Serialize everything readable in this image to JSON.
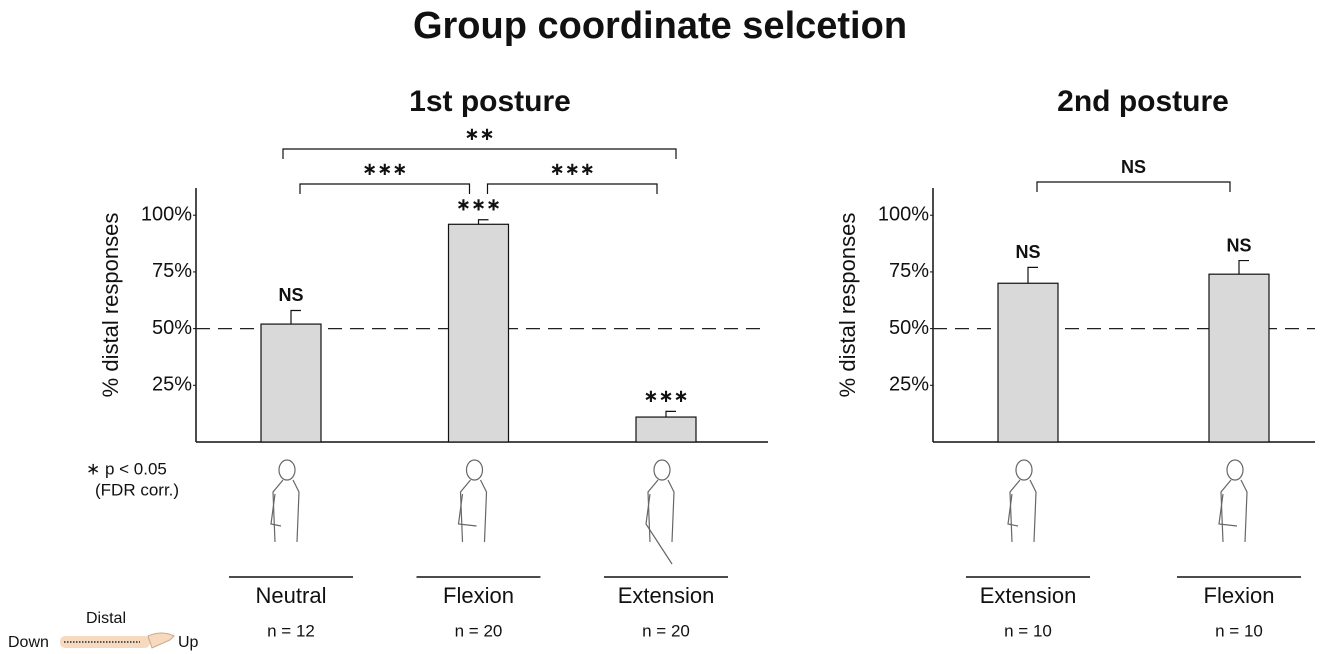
{
  "title": "Group coordinate selcetion",
  "footnote": [
    "∗ p < 0.05",
    "(FDR corr.)"
  ],
  "arm_legend": {
    "label": "Distal",
    "left": "Down",
    "right": "Up"
  },
  "chart_data": [
    {
      "type": "bar",
      "title": "1st posture",
      "ylabel": "% distal responses",
      "categories": [
        "Neutral",
        "Flexion",
        "Extension"
      ],
      "n_labels": [
        "n = 12",
        "n = 20",
        "n = 20"
      ],
      "values": [
        52,
        96,
        11
      ],
      "errors": [
        6,
        2,
        2.5
      ],
      "significance": [
        "NS",
        "∗∗∗",
        "∗∗∗"
      ],
      "brackets": [
        {
          "from": 0,
          "to": 2,
          "label": "∗∗"
        },
        {
          "from": 0,
          "to": 1,
          "label": "∗∗∗"
        },
        {
          "from": 1,
          "to": 2,
          "label": "∗∗∗"
        }
      ],
      "color": "#d9d9d9",
      "reference_line": 50,
      "ylim": [
        0,
        112
      ],
      "yticks": [
        {
          "value": 25,
          "label": "25%"
        },
        {
          "value": 50,
          "label": "50%"
        },
        {
          "value": 75,
          "label": "75%"
        },
        {
          "value": 100,
          "label": "100%"
        }
      ]
    },
    {
      "type": "bar",
      "title": "2nd posture",
      "ylabel": "% distal responses",
      "categories": [
        "Extension",
        "Flexion"
      ],
      "n_labels": [
        "n = 10",
        "n = 10"
      ],
      "values": [
        70,
        74
      ],
      "errors": [
        7,
        6
      ],
      "significance": [
        "NS",
        "NS"
      ],
      "brackets": [
        {
          "from": 0,
          "to": 1,
          "label": "NS"
        }
      ],
      "color": "#d9d9d9",
      "reference_line": 50,
      "ylim": [
        0,
        112
      ],
      "yticks": [
        {
          "value": 25,
          "label": "25%"
        },
        {
          "value": 50,
          "label": "50%"
        },
        {
          "value": 75,
          "label": "75%"
        },
        {
          "value": 100,
          "label": "100%"
        }
      ]
    }
  ]
}
